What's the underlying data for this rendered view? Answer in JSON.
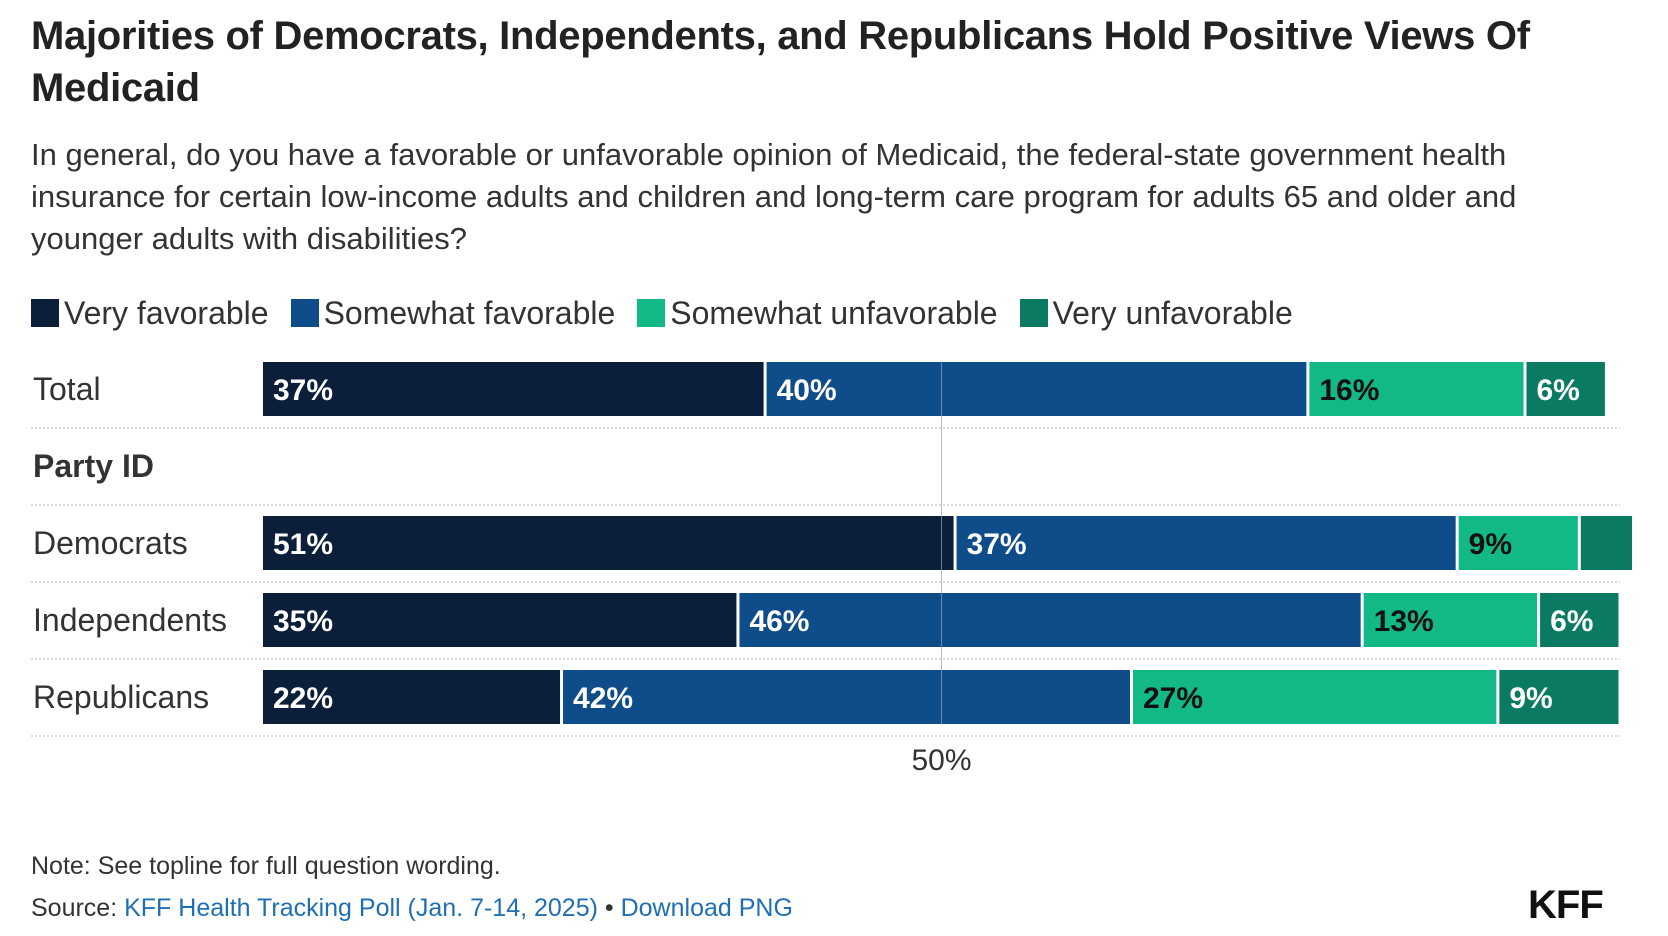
{
  "header": {
    "title": "Majorities of Democrats, Independents, and Republicans Hold Positive Views Of Medicaid",
    "subtitle": "In general, do you have a favorable or unfavorable opinion of Medicaid, the federal-state government health insurance for certain low-income adults and children and long-term care program for adults 65 and older and younger adults with disabilities?"
  },
  "chart_data": {
    "type": "bar",
    "orientation": "horizontal",
    "stacked": true,
    "legend": [
      "Very favorable",
      "Somewhat favorable",
      "Somewhat unfavorable",
      "Very unfavorable"
    ],
    "legend_position": "top",
    "colors": [
      "#0b1f3a",
      "#0f4c8a",
      "#12b886",
      "#0b7a62"
    ],
    "rows": [
      {
        "label": "Total",
        "values": [
          37,
          40,
          16,
          6
        ],
        "labels": [
          "37%",
          "40%",
          "16%",
          "6%"
        ]
      },
      {
        "label": "Party ID",
        "section_header": true
      },
      {
        "label": "Democrats",
        "values": [
          51,
          37,
          9,
          4
        ],
        "labels": [
          "51%",
          "37%",
          "9%",
          ""
        ]
      },
      {
        "label": "Independents",
        "values": [
          35,
          46,
          13,
          6
        ],
        "labels": [
          "35%",
          "46%",
          "13%",
          "6%"
        ]
      },
      {
        "label": "Republicans",
        "values": [
          22,
          42,
          27,
          9
        ],
        "labels": [
          "22%",
          "42%",
          "27%",
          "9%"
        ]
      }
    ],
    "reference_line": {
      "value": 50,
      "label": "50%"
    },
    "xlim": [
      0,
      100
    ]
  },
  "footer": {
    "note": "Note: See topline for full question wording.",
    "source_prefix": "Source: ",
    "source_link": "KFF Health Tracking Poll (Jan. 7-14, 2025)",
    "separator": " • ",
    "download_link": "Download PNG",
    "logo": "KFF"
  }
}
